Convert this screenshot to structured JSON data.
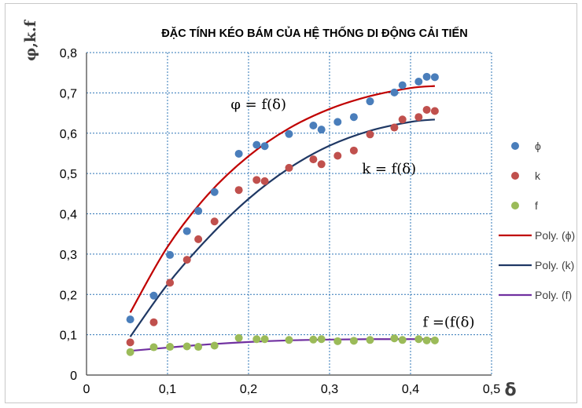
{
  "chart_data": {
    "type": "scatter",
    "title": "ĐẶC TÍNH KÉO BÁM CỦA HỆ THỐNG DI ĐỘNG CẢI TIẾN",
    "xlabel": "δ",
    "ylabel": "φ,k.f",
    "xlim": [
      0,
      0.5
    ],
    "ylim": [
      0,
      0.8
    ],
    "x_ticks": [
      "0",
      "0,1",
      "0,2",
      "0,3",
      "0,4",
      "0,5"
    ],
    "y_ticks": [
      "0",
      "0,1",
      "0,2",
      "0,3",
      "0,4",
      "0,5",
      "0,6",
      "0,7",
      "0,8"
    ],
    "grid": true,
    "legend_position": "right",
    "series": [
      {
        "name": "ϕ",
        "kind": "scatter",
        "color": "#4a7ebb",
        "x": [
          0.054,
          0.083,
          0.103,
          0.124,
          0.138,
          0.158,
          0.188,
          0.21,
          0.22,
          0.25,
          0.28,
          0.29,
          0.31,
          0.33,
          0.35,
          0.38,
          0.39,
          0.41,
          0.42,
          0.43
        ],
        "y": [
          0.138,
          0.197,
          0.298,
          0.357,
          0.407,
          0.454,
          0.549,
          0.571,
          0.568,
          0.598,
          0.619,
          0.609,
          0.628,
          0.64,
          0.679,
          0.701,
          0.719,
          0.728,
          0.74,
          0.739
        ]
      },
      {
        "name": "k",
        "kind": "scatter",
        "color": "#c0504d",
        "x": [
          0.054,
          0.083,
          0.103,
          0.124,
          0.138,
          0.158,
          0.188,
          0.21,
          0.22,
          0.25,
          0.28,
          0.29,
          0.31,
          0.33,
          0.35,
          0.38,
          0.39,
          0.41,
          0.42,
          0.43
        ],
        "y": [
          0.081,
          0.131,
          0.229,
          0.286,
          0.337,
          0.381,
          0.459,
          0.484,
          0.481,
          0.514,
          0.535,
          0.523,
          0.544,
          0.557,
          0.597,
          0.614,
          0.634,
          0.64,
          0.658,
          0.655
        ]
      },
      {
        "name": "f",
        "kind": "scatter",
        "color": "#9bbb59",
        "x": [
          0.054,
          0.083,
          0.103,
          0.124,
          0.138,
          0.158,
          0.188,
          0.21,
          0.22,
          0.25,
          0.28,
          0.29,
          0.31,
          0.33,
          0.35,
          0.38,
          0.39,
          0.41,
          0.42,
          0.43
        ],
        "y": [
          0.057,
          0.069,
          0.07,
          0.071,
          0.07,
          0.073,
          0.092,
          0.089,
          0.089,
          0.087,
          0.088,
          0.089,
          0.084,
          0.085,
          0.087,
          0.091,
          0.087,
          0.089,
          0.086,
          0.086
        ]
      },
      {
        "name": "Poly. (ϕ)",
        "kind": "line",
        "color": "#c00000",
        "x": [
          0.054,
          0.1,
          0.15,
          0.2,
          0.25,
          0.3,
          0.35,
          0.4,
          0.43
        ],
        "y": [
          0.155,
          0.318,
          0.448,
          0.543,
          0.612,
          0.66,
          0.692,
          0.712,
          0.717
        ]
      },
      {
        "name": "Poly. (k)",
        "kind": "line",
        "color": "#1f3864",
        "x": [
          0.054,
          0.1,
          0.15,
          0.2,
          0.25,
          0.3,
          0.35,
          0.4,
          0.43
        ],
        "y": [
          0.095,
          0.225,
          0.34,
          0.437,
          0.513,
          0.569,
          0.606,
          0.628,
          0.634
        ]
      },
      {
        "name": "Poly. (f)",
        "kind": "line",
        "color": "#7030a0",
        "x": [
          0.054,
          0.1,
          0.15,
          0.2,
          0.25,
          0.3,
          0.35,
          0.4,
          0.43
        ],
        "y": [
          0.06,
          0.068,
          0.076,
          0.082,
          0.086,
          0.088,
          0.089,
          0.089,
          0.089
        ]
      }
    ],
    "annotations": [
      {
        "text": "φ = f(δ)",
        "x": 0.178,
        "y": 0.66
      },
      {
        "text": "k = f(δ)",
        "x": 0.34,
        "y": 0.5
      },
      {
        "text": "f =(f(δ)",
        "x": 0.415,
        "y": 0.12
      }
    ]
  }
}
